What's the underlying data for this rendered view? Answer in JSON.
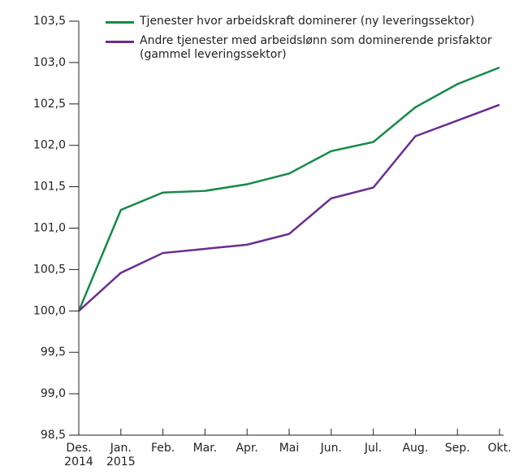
{
  "chart_data": {
    "type": "line",
    "categories": [
      "Des.\n2014",
      "Jan.\n2015",
      "Feb.",
      "Mar.",
      "Apr.",
      "Mai",
      "Jun.",
      "Jul.",
      "Aug.",
      "Sep.",
      "Okt."
    ],
    "series": [
      {
        "name": "Tjenester hvor arbeidskraft dominerer (ny leveringssektor)",
        "color": "#16894a",
        "values": [
          100.0,
          101.22,
          101.43,
          101.45,
          101.53,
          101.66,
          101.93,
          102.04,
          102.46,
          102.74,
          102.94
        ]
      },
      {
        "name": "Andre tjenester med arbeidslønn som dominerende prisfaktor (gammel leveringssektor)",
        "color": "#6b2d8f",
        "values": [
          100.0,
          100.46,
          100.7,
          100.75,
          100.8,
          100.93,
          101.36,
          101.49,
          102.11,
          102.3,
          102.49
        ]
      }
    ],
    "ylim": [
      98.5,
      103.5
    ],
    "yticks": [
      {
        "value": 98.5,
        "label": "98,5"
      },
      {
        "value": 99.0,
        "label": "99,0"
      },
      {
        "value": 99.5,
        "label": "99,5"
      },
      {
        "value": 100.0,
        "label": "100,0"
      },
      {
        "value": 100.5,
        "label": "100,5"
      },
      {
        "value": 101.0,
        "label": "101,0"
      },
      {
        "value": 101.5,
        "label": "101,5"
      },
      {
        "value": 102.0,
        "label": "102,0"
      },
      {
        "value": 102.5,
        "label": "102,5"
      },
      {
        "value": 103.0,
        "label": "103,0"
      },
      {
        "value": 103.5,
        "label": "103,5"
      }
    ],
    "legend": "upper-right"
  }
}
